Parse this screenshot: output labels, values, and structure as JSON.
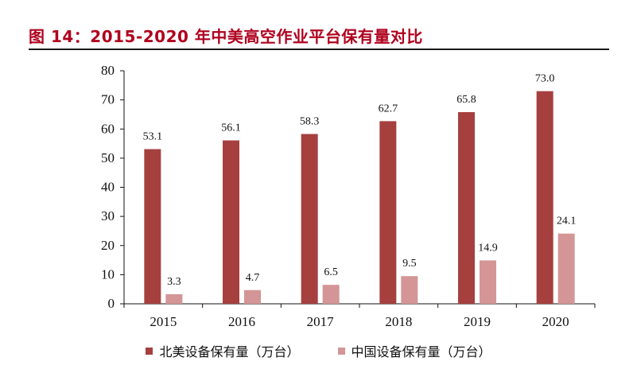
{
  "title": "图 14：2015-2020 年中美高空作业平台保有量对比",
  "colors": {
    "series1": "#a5403f",
    "series2": "#d49596",
    "title": "#b0001e"
  },
  "chart_data": {
    "type": "bar",
    "categories": [
      "2015",
      "2016",
      "2017",
      "2018",
      "2019",
      "2020"
    ],
    "series": [
      {
        "name": "北美设备保有量（万台）",
        "values": [
          53.1,
          56.1,
          58.3,
          62.7,
          65.8,
          73.0
        ],
        "labels": [
          "53.1",
          "56.1",
          "58.3",
          "62.7",
          "65.8",
          "73.0"
        ]
      },
      {
        "name": "中国设备保有量（万台）",
        "values": [
          3.3,
          4.7,
          6.5,
          9.5,
          14.9,
          24.1
        ],
        "labels": [
          "3.3",
          "4.7",
          "6.5",
          "9.5",
          "14.9",
          "24.1"
        ]
      }
    ],
    "ylim": [
      0,
      80
    ],
    "yticks": [
      "0",
      "10",
      "20",
      "30",
      "40",
      "50",
      "60",
      "70",
      "80"
    ],
    "xlabel": "",
    "ylabel": "",
    "grid": false,
    "legend_position": "bottom"
  }
}
